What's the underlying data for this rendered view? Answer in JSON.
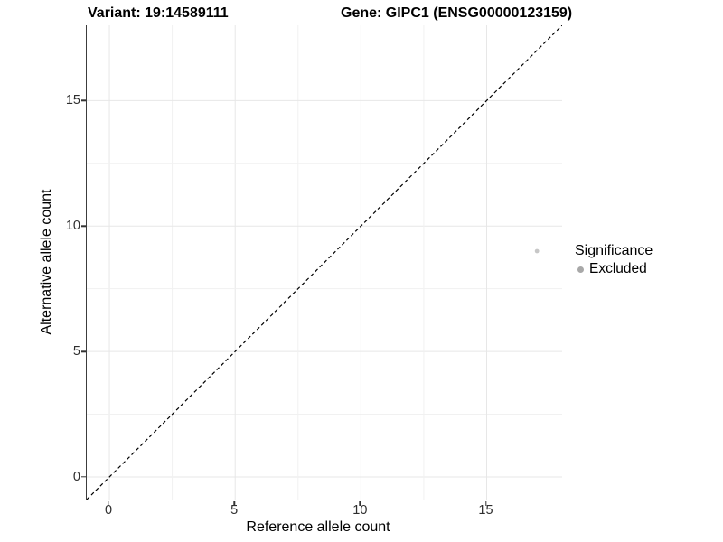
{
  "header": {
    "variant_title": "Variant: 19:14589111",
    "gene_title": "Gene: GIPC1 (ENSG00000123159)"
  },
  "legend": {
    "title": "Significance",
    "items": [
      {
        "label": "Excluded",
        "color": "#a8a8a8"
      }
    ]
  },
  "chart_data": {
    "type": "scatter",
    "title": "Variant: 19:14589111 / Gene: GIPC1 (ENSG00000123159)",
    "xlabel": "Reference allele count",
    "ylabel": "Alternative allele count",
    "xlim": [
      -0.9,
      18.0
    ],
    "ylim": [
      -0.9,
      18.0
    ],
    "x_ticks": [
      0,
      5,
      10,
      15
    ],
    "y_ticks": [
      0,
      5,
      10,
      15
    ],
    "grid": "on",
    "grid_minor_step": 2.5,
    "legend_position": "right",
    "identity_line": {
      "equation": "y = x",
      "style": "dashed",
      "color": "#000000"
    },
    "series": [
      {
        "name": "Excluded",
        "color": "#c7c7c7",
        "points": [
          {
            "x": 17,
            "y": 9
          }
        ]
      }
    ]
  },
  "style_colors": {
    "grid_major": "#e7e7e7",
    "grid_minor": "#f1f1f1",
    "axis_line": "#3c3c3c",
    "tick_text": "#2e2e2e"
  }
}
